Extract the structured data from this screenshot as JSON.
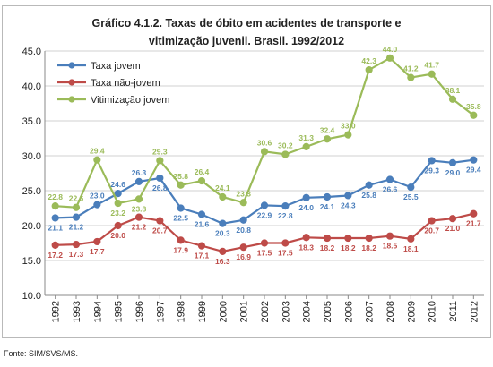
{
  "chart_data": {
    "type": "line",
    "title_line1": "Gráfico 4.1.2. Taxas de óbito em acidentes de transporte e",
    "title_line2": "vitimização juvenil. Brasil. 1992/2012",
    "x": [
      "1992",
      "1993",
      "1994",
      "1995",
      "1996",
      "1997",
      "1998",
      "1999",
      "2000",
      "2001",
      "2002",
      "2003",
      "2004",
      "2005",
      "2006",
      "2007",
      "2008",
      "2009",
      "2010",
      "2011",
      "2012"
    ],
    "ylim": [
      10.0,
      45.0
    ],
    "y_ticks": [
      "10.0",
      "15.0",
      "20.0",
      "25.0",
      "30.0",
      "35.0",
      "40.0",
      "45.0"
    ],
    "grid": true,
    "legend_position": "top-left",
    "series": [
      {
        "name": "Taxa jovem",
        "color": "#4a7ebb",
        "values": [
          21.1,
          21.2,
          23.0,
          24.6,
          26.3,
          26.8,
          22.5,
          21.6,
          20.3,
          20.8,
          22.9,
          22.8,
          24.0,
          24.1,
          24.3,
          25.8,
          26.6,
          25.5,
          29.3,
          29.0,
          29.4
        ],
        "labels": [
          "21.1",
          "21.2",
          "23.0",
          "24.6",
          "26.3",
          "26.8",
          "22.5",
          "21.6",
          "20.3",
          "20.8",
          "22.9",
          "22.8",
          "24.0",
          "24.1",
          "24.3",
          "25.8",
          "26.6",
          "25.5",
          "29.3",
          "29.0",
          "29.4"
        ]
      },
      {
        "name": "Taxa não-jovem",
        "color": "#be4b48",
        "values": [
          17.2,
          17.3,
          17.7,
          20.0,
          21.2,
          20.7,
          17.9,
          17.1,
          16.3,
          16.9,
          17.5,
          17.5,
          18.3,
          18.2,
          18.2,
          18.2,
          18.5,
          18.1,
          20.7,
          21.0,
          21.7
        ],
        "labels": [
          "17.2",
          "17.3",
          "17.7",
          "20.0",
          "21.2",
          "20.7",
          "17.9",
          "17.1",
          "16.3",
          "16.9",
          "17.5",
          "17.5",
          "18.3",
          "18.2",
          "18.2",
          "18.2",
          "18.5",
          "18.1",
          "20.7",
          "21.0",
          "21.7"
        ]
      },
      {
        "name": "Vitimização jovem",
        "color": "#9bbb59",
        "values": [
          22.8,
          22.6,
          29.4,
          23.2,
          23.8,
          29.3,
          25.8,
          26.4,
          24.1,
          23.3,
          30.6,
          30.2,
          31.3,
          32.4,
          33.0,
          42.3,
          44.0,
          41.2,
          41.7,
          38.1,
          35.8
        ],
        "labels": [
          "22.8",
          "22.6",
          "29.4",
          "23.2",
          "23.8",
          "29.3",
          "25.8",
          "26.4",
          "24.1",
          "23.3",
          "30.6",
          "30.2",
          "31.3",
          "32.4",
          "33.0",
          "42.3",
          "44.0",
          "41.2",
          "41.7",
          "38.1",
          "35.8"
        ]
      }
    ]
  },
  "source": "Fonte: SIM/SVS/MS."
}
